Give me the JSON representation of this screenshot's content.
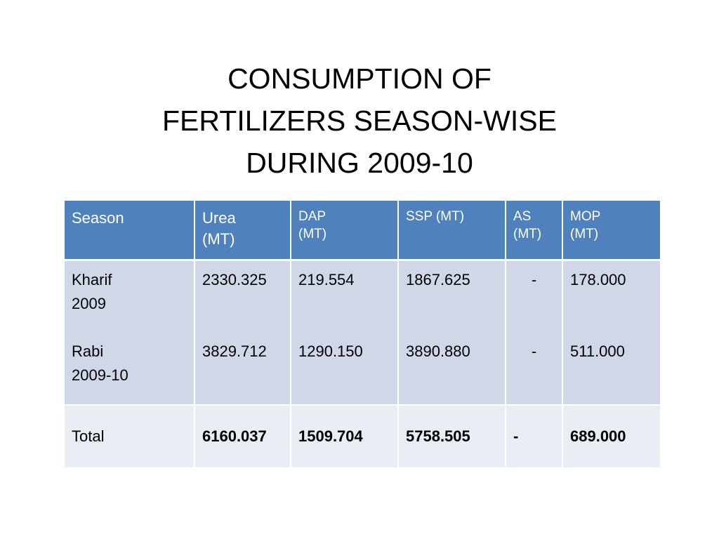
{
  "title": {
    "line1": "CONSUMPTION OF",
    "line2": "FERTILIZERS SEASON-WISE",
    "line3": "DURING 2009-10"
  },
  "table": {
    "headers": {
      "season": "Season",
      "urea_l1": "Urea",
      "urea_l2": "(MT)",
      "dap_l1": "DAP",
      "dap_l2": "(MT)",
      "ssp": "SSP (MT)",
      "as_l1": "AS",
      "as_l2": "(MT)",
      "mop_l1": "MOP",
      "mop_l2": "(MT)"
    },
    "kharif": {
      "season_l1": "Kharif",
      "season_l2": "2009",
      "urea": "2330.325",
      "dap": "219.554",
      "ssp": "1867.625",
      "as": "-",
      "mop": "178.000"
    },
    "rabi": {
      "season_l1": "Rabi",
      "season_l2": "2009-10",
      "urea": "3829.712",
      "dap": "1290.150",
      "ssp": "3890.880",
      "as": "-",
      "mop": "511.000"
    },
    "total": {
      "label": "Total",
      "urea": "6160.037",
      "dap": "1509.704",
      "ssp": "5758.505",
      "as": "-",
      "mop": "689.000"
    }
  },
  "colors": {
    "header_bg": "#4f81bd",
    "row_bg": "#d0d8e8",
    "total_bg": "#e9edf4"
  }
}
